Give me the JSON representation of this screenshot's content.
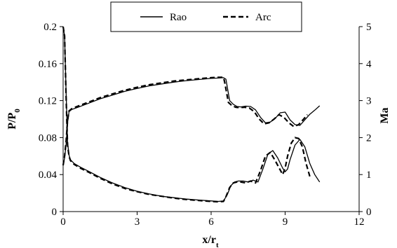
{
  "chart_data": {
    "type": "line",
    "title": "",
    "xlabel_main": "x/r",
    "xlabel_sub": "t",
    "ylabel_left_main": "P/P",
    "ylabel_left_sub": "0",
    "ylabel_right": "Ma",
    "xlim": [
      0,
      12
    ],
    "ylim_left": [
      0,
      0.2
    ],
    "ylim_right": [
      0,
      5
    ],
    "x_ticks": [
      "0",
      "3",
      "6",
      "9",
      "12"
    ],
    "y_left_ticks": [
      "0",
      "0.04",
      "0.08",
      "0.12",
      "0.16",
      "0.2"
    ],
    "y_right_ticks": [
      "0",
      "1",
      "2",
      "3",
      "4",
      "5"
    ],
    "grid": false,
    "legend_position": "top-center",
    "series": [
      {
        "name": "Rao",
        "style": "solid",
        "axis": "left",
        "quantity": "pressure",
        "x": [
          0.0,
          0.06,
          0.12,
          0.18,
          0.24,
          0.3,
          0.45,
          0.7,
          1.0,
          1.5,
          2.0,
          2.5,
          3.0,
          3.5,
          4.0,
          4.5,
          5.0,
          5.5,
          6.0,
          6.3,
          6.5,
          6.65,
          6.8,
          6.95,
          7.1,
          7.3,
          7.5,
          7.7,
          7.9,
          8.1,
          8.3,
          8.5,
          8.7,
          8.9,
          9.0,
          9.1,
          9.2,
          9.4,
          9.6,
          9.8,
          10.0,
          10.2,
          10.4
        ],
        "y": [
          0.2,
          0.19,
          0.13,
          0.075,
          0.061,
          0.056,
          0.052,
          0.048,
          0.044,
          0.037,
          0.031,
          0.026,
          0.022,
          0.019,
          0.0165,
          0.015,
          0.0135,
          0.0125,
          0.0115,
          0.011,
          0.0115,
          0.018,
          0.028,
          0.032,
          0.033,
          0.033,
          0.032,
          0.034,
          0.032,
          0.046,
          0.062,
          0.066,
          0.058,
          0.047,
          0.043,
          0.046,
          0.056,
          0.072,
          0.078,
          0.07,
          0.052,
          0.04,
          0.032
        ]
      },
      {
        "name": "Arc",
        "style": "dashed",
        "axis": "left",
        "quantity": "pressure",
        "x": [
          0.0,
          0.06,
          0.12,
          0.18,
          0.24,
          0.3,
          0.45,
          0.7,
          1.0,
          1.5,
          2.0,
          2.5,
          3.0,
          3.5,
          4.0,
          4.5,
          5.0,
          5.5,
          6.0,
          6.3,
          6.5,
          6.6,
          6.75,
          6.9,
          7.05,
          7.2,
          7.4,
          7.6,
          7.8,
          8.0,
          8.2,
          8.4,
          8.6,
          8.8,
          8.9,
          9.0,
          9.1,
          9.25,
          9.4,
          9.55,
          9.7,
          9.85,
          10.0
        ],
        "y": [
          0.2,
          0.19,
          0.125,
          0.072,
          0.06,
          0.055,
          0.051,
          0.047,
          0.043,
          0.036,
          0.03,
          0.025,
          0.0215,
          0.0185,
          0.0165,
          0.0145,
          0.013,
          0.012,
          0.011,
          0.0105,
          0.011,
          0.016,
          0.026,
          0.031,
          0.032,
          0.032,
          0.031,
          0.033,
          0.031,
          0.044,
          0.06,
          0.064,
          0.055,
          0.045,
          0.04,
          0.047,
          0.06,
          0.074,
          0.08,
          0.079,
          0.07,
          0.052,
          0.038
        ]
      },
      {
        "name": "Rao",
        "style": "solid",
        "axis": "right",
        "quantity": "Mach number",
        "x": [
          0.0,
          0.06,
          0.12,
          0.18,
          0.24,
          0.35,
          0.6,
          1.0,
          1.5,
          2.0,
          2.5,
          3.0,
          3.5,
          4.0,
          4.5,
          5.0,
          5.5,
          6.0,
          6.3,
          6.5,
          6.6,
          6.75,
          6.9,
          7.05,
          7.2,
          7.4,
          7.6,
          7.8,
          8.0,
          8.2,
          8.4,
          8.6,
          8.8,
          9.0,
          9.2,
          9.4,
          9.6,
          9.8,
          10.0,
          10.2,
          10.4
        ],
        "y": [
          1.25,
          1.45,
          1.8,
          2.4,
          2.7,
          2.76,
          2.82,
          2.92,
          3.05,
          3.15,
          3.25,
          3.33,
          3.4,
          3.45,
          3.5,
          3.54,
          3.57,
          3.6,
          3.61,
          3.62,
          3.58,
          3.0,
          2.9,
          2.84,
          2.83,
          2.85,
          2.84,
          2.75,
          2.55,
          2.4,
          2.42,
          2.52,
          2.67,
          2.69,
          2.48,
          2.35,
          2.33,
          2.48,
          2.63,
          2.74,
          2.86
        ]
      },
      {
        "name": "Arc",
        "style": "dashed",
        "axis": "right",
        "quantity": "Mach number",
        "x": [
          0.0,
          0.06,
          0.12,
          0.18,
          0.24,
          0.35,
          0.6,
          1.0,
          1.5,
          2.0,
          2.5,
          3.0,
          3.5,
          4.0,
          4.5,
          5.0,
          5.5,
          6.0,
          6.3,
          6.5,
          6.55,
          6.7,
          6.85,
          7.0,
          7.15,
          7.35,
          7.55,
          7.75,
          7.95,
          8.15,
          8.35,
          8.55,
          8.75,
          8.95,
          9.15,
          9.35,
          9.55,
          9.75,
          9.9
        ],
        "y": [
          1.25,
          1.5,
          1.9,
          2.45,
          2.72,
          2.78,
          2.85,
          2.95,
          3.08,
          3.18,
          3.28,
          3.36,
          3.43,
          3.48,
          3.53,
          3.56,
          3.59,
          3.62,
          3.63,
          3.63,
          3.5,
          2.95,
          2.86,
          2.82,
          2.81,
          2.82,
          2.8,
          2.7,
          2.5,
          2.37,
          2.4,
          2.5,
          2.62,
          2.55,
          2.4,
          2.3,
          2.35,
          2.5,
          2.62
        ]
      }
    ]
  },
  "legend": {
    "rao_label": "Rao",
    "arc_label": "Arc"
  }
}
